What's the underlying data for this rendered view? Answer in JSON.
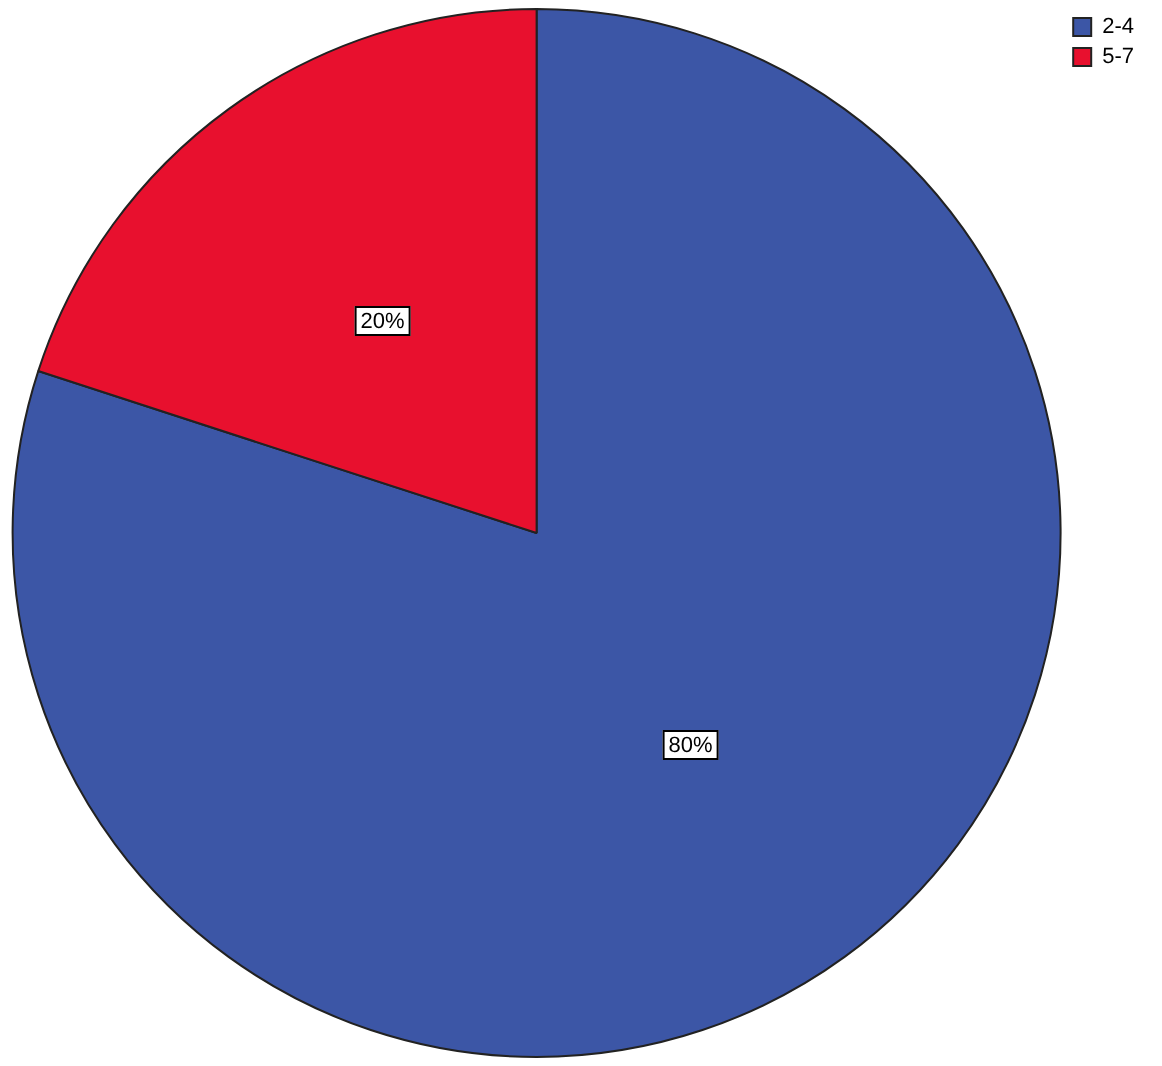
{
  "chart_data": {
    "type": "pie",
    "categories": [
      "2-4",
      "5-7"
    ],
    "values": [
      80,
      20
    ],
    "colors": [
      "#3c56a6",
      "#e8102e"
    ],
    "value_labels": [
      "80%",
      "20%"
    ],
    "legend": "top right"
  }
}
